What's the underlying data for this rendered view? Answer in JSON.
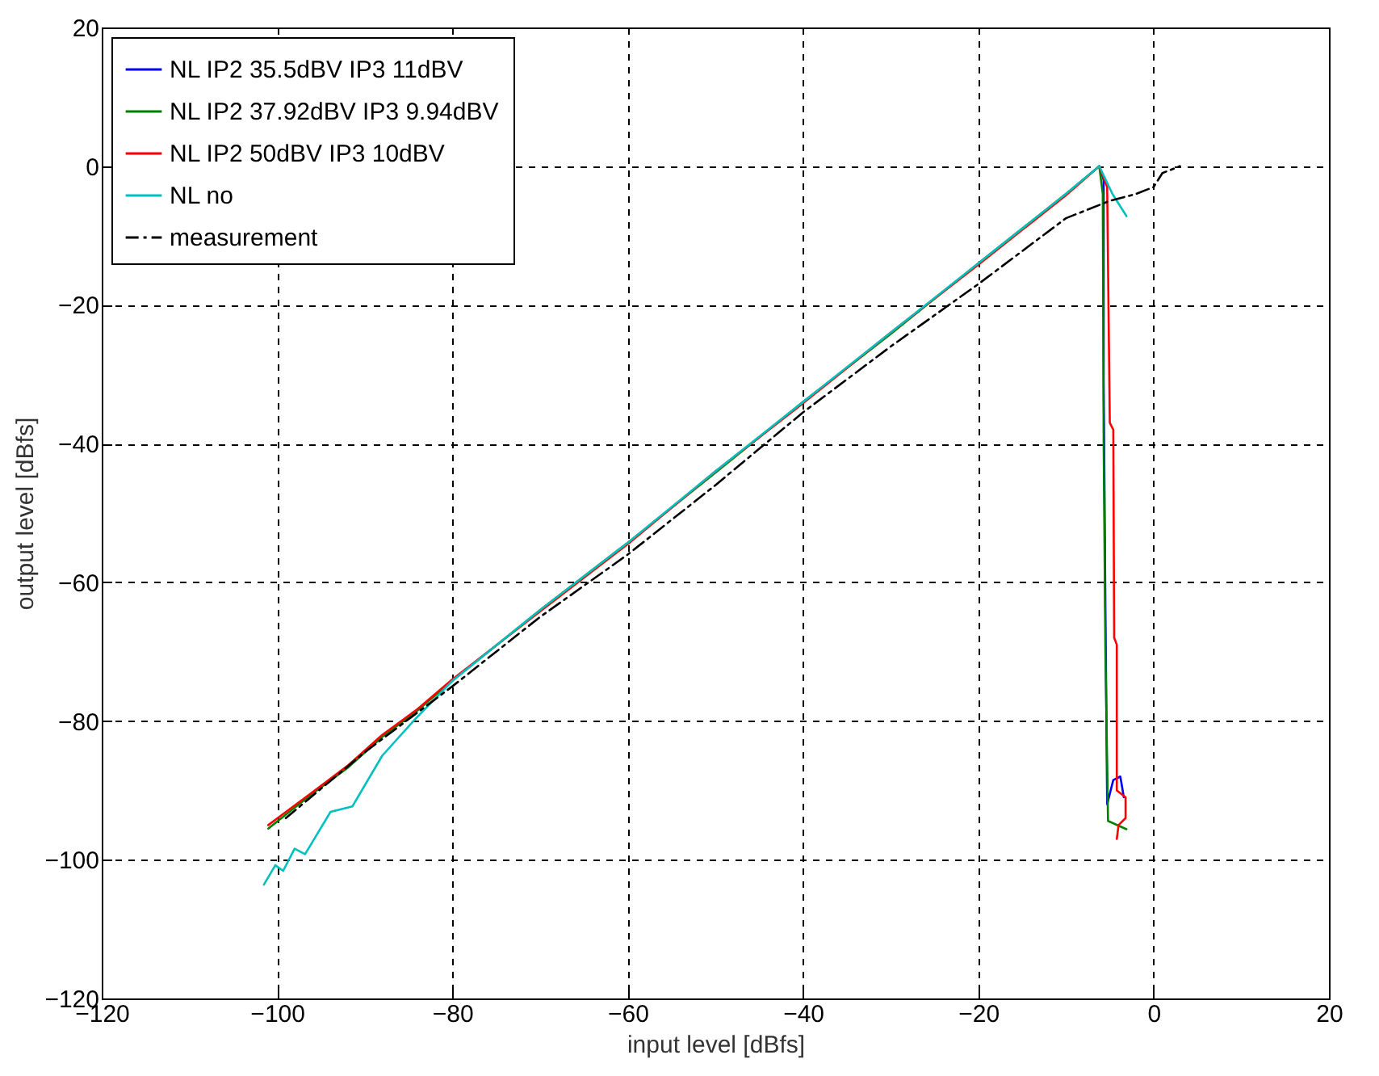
{
  "chart_data": {
    "type": "line",
    "xlabel": "input level [dBfs]",
    "ylabel": "output level [dBfs]",
    "xlim": [
      -120,
      20
    ],
    "xticks": [
      -120,
      -100,
      -80,
      -60,
      -40,
      -20,
      0,
      20
    ],
    "ylim": [
      -120,
      20
    ],
    "yticks": [
      -120,
      -100,
      -80,
      -60,
      -40,
      -20,
      0,
      20
    ],
    "grid": true,
    "legend": "top left",
    "marker": "none",
    "series": [
      {
        "name": "NL IP2 35.5dBV IP3 11dBV",
        "color": "#0000ff",
        "line_style": "solid",
        "x": [
          -6.2,
          -5.7,
          -5.7,
          -5.5,
          -5.3,
          -4.6,
          -3.8,
          -3.4
        ],
        "values": [
          0,
          -2,
          -31,
          -64,
          -92,
          -88.5,
          -88,
          -91
        ]
      },
      {
        "name": "NL IP2 37.92dBV IP3 9.94dBV",
        "color": "#008000",
        "line_style": "solid",
        "x": [
          -101,
          -96,
          -92,
          -88,
          -84,
          -80,
          -70,
          -60,
          -50,
          -40,
          -30,
          -20,
          -10,
          -6.2,
          -5.8,
          -5.7,
          -5.5,
          -5.2,
          -3.1
        ],
        "values": [
          -95.5,
          -90.5,
          -86.8,
          -82.3,
          -78.5,
          -74.2,
          -64,
          -54.3,
          -44.2,
          -34,
          -24.2,
          -14,
          -4,
          0,
          -4,
          -40,
          -70,
          -94.4,
          -95.6
        ]
      },
      {
        "name": "NL IP2 50dBV IP3 10dBV",
        "color": "#ff0000",
        "line_style": "solid",
        "x": [
          -101,
          -96,
          -92,
          -88,
          -84,
          -80,
          -70,
          -60,
          -50,
          -40,
          -30,
          -20,
          -10,
          -6.2,
          -5.3,
          -5,
          -4.6,
          -4.5,
          -4.2,
          -4.2,
          -3.2,
          -3.2,
          -4,
          -4.2
        ],
        "values": [
          -95,
          -90.3,
          -86.5,
          -82,
          -78.3,
          -74,
          -64.2,
          -54.5,
          -44,
          -34.2,
          -24,
          -14.2,
          -4.2,
          0,
          -3,
          -37,
          -38,
          -68,
          -69,
          -90,
          -91,
          -94,
          -95,
          -97
        ]
      },
      {
        "name": "NL no",
        "color": "#00bfbf",
        "line_style": "solid",
        "x": [
          -101.5,
          -100.2,
          -99.3,
          -98,
          -96.8,
          -93.9,
          -91.4,
          -88,
          -84.3,
          -80,
          -70,
          -60,
          -50,
          -40,
          -30,
          -20,
          -10,
          -6.2,
          -4.7,
          -3.1
        ],
        "values": [
          -103.6,
          -100.8,
          -101.6,
          -98.4,
          -99.2,
          -93.1,
          -92.3,
          -85,
          -79.8,
          -74.2,
          -64,
          -54.3,
          -44,
          -34,
          -24,
          -14,
          -4,
          0,
          -4,
          -7.2
        ]
      },
      {
        "name": "measurement",
        "color": "#000000",
        "line_style": "dashed",
        "x": [
          -99,
          -90,
          -80,
          -70,
          -60,
          -50,
          -40,
          -30,
          -20,
          -10,
          -5,
          -2,
          0,
          1,
          3
        ],
        "values": [
          -94,
          -84.5,
          -75,
          -65,
          -56,
          -46,
          -35.5,
          -26,
          -17,
          -7.5,
          -5,
          -4,
          -3,
          -1,
          0
        ]
      }
    ]
  }
}
